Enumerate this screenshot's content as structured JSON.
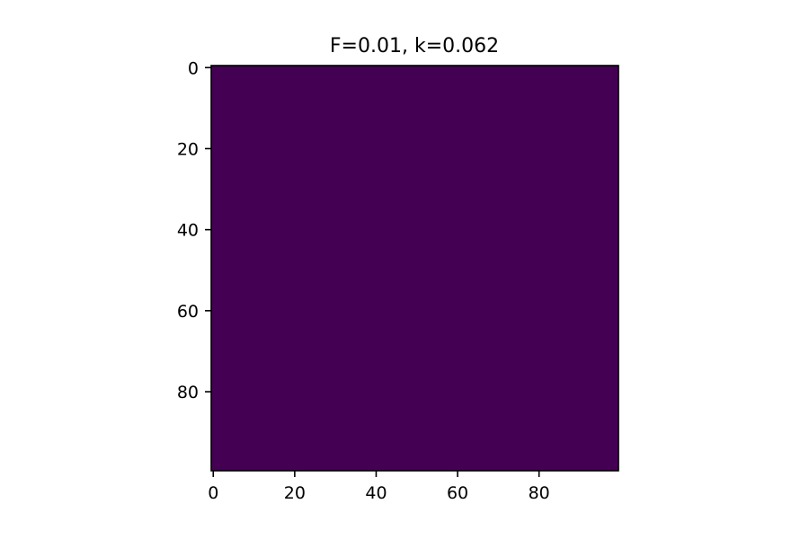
{
  "chart_data": {
    "type": "heatmap",
    "title": "F=0.01, k=0.062",
    "xlabel": "",
    "ylabel": "",
    "xlim": [
      -0.5,
      99.5
    ],
    "ylim": [
      99.5,
      -0.5
    ],
    "x_ticks": [
      0,
      20,
      40,
      60,
      80
    ],
    "y_ticks": [
      0,
      20,
      40,
      60,
      80
    ],
    "grid": false,
    "legend": "none",
    "rows": 100,
    "cols": 100,
    "fill_value": 0,
    "colormap": "viridis",
    "cell_color": "#440154",
    "axis_color": "#000000"
  }
}
